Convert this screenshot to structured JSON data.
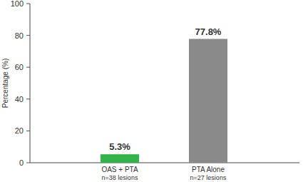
{
  "chart_data": {
    "type": "bar",
    "y_label": "Percentage (%)",
    "categories": [
      "OAS + PTA\nn=38 lesions",
      "PTA Alone\nn=27 lesions"
    ],
    "values": [
      5.3,
      77.8
    ],
    "value_labels": [
      "5.3%",
      "77.8%"
    ],
    "data_labels": true,
    "colors": [
      "#33b44a",
      "#8a8a8a"
    ],
    "ylim": [
      0,
      100
    ],
    "yticks": [
      0,
      20,
      40,
      60,
      80,
      100
    ],
    "grid": false
  }
}
